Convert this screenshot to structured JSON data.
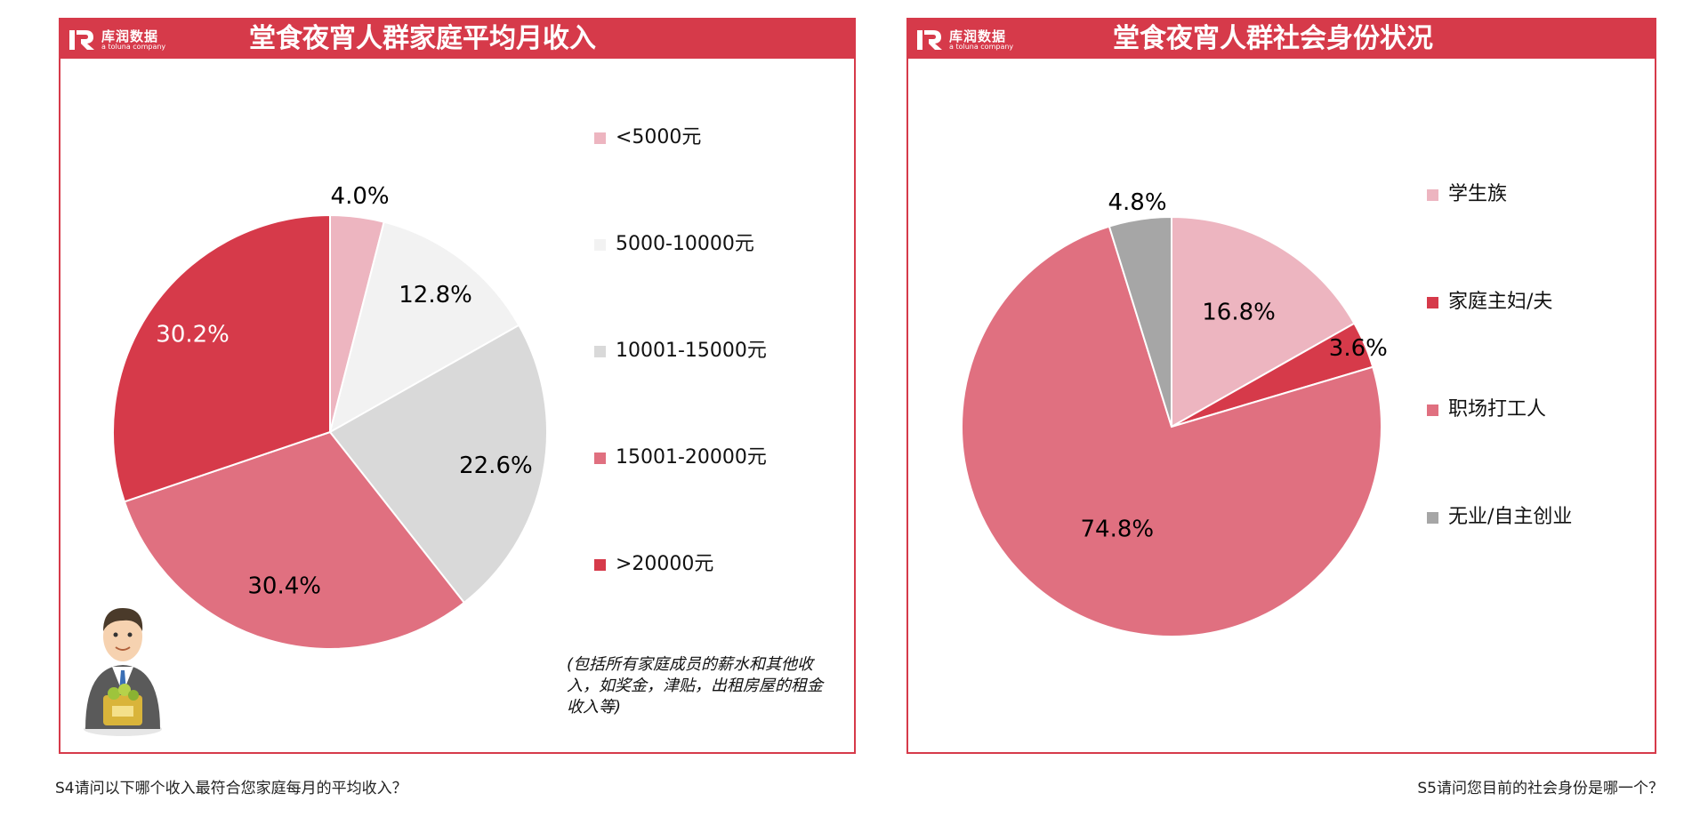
{
  "brand": {
    "name": "库润数据",
    "sub": "a toluna company",
    "color": "#d63a4a"
  },
  "chart_data": [
    {
      "type": "pie",
      "title": "堂食夜宵人群家庭平均月收入",
      "categories": [
        "<5000元",
        "5000-10000元",
        "10001-15000元",
        "15001-20000元",
        ">20000元"
      ],
      "values": [
        4.0,
        12.8,
        22.6,
        30.4,
        30.2
      ],
      "labels": [
        "4.0%",
        "12.8%",
        "22.6%",
        "30.4%",
        "30.2%"
      ],
      "colors": [
        "#edb5c0",
        "#f2f2f2",
        "#d9d9d9",
        "#e07080",
        "#d63a4a"
      ],
      "label_colors": [
        "#000000",
        "#000000",
        "#000000",
        "#000000",
        "#ffffff"
      ],
      "legend": "right",
      "note": "(包括所有家庭成员的薪水和其他收入，如奖金，津贴，出租房屋的租金收入等)",
      "question": "S4请问以下哪个收入最符合您家庭每月的平均收入？"
    },
    {
      "type": "pie",
      "title": "堂食夜宵人群社会身份状况",
      "categories": [
        "学生族",
        "家庭主妇/夫",
        "职场打工人",
        "无业/自主创业"
      ],
      "values": [
        16.8,
        3.6,
        74.8,
        4.8
      ],
      "labels": [
        "16.8%",
        "3.6%",
        "74.8%",
        "4.8%"
      ],
      "colors": [
        "#edb5c0",
        "#d63a4a",
        "#e07080",
        "#a6a6a6"
      ],
      "label_colors": [
        "#000000",
        "#000000",
        "#000000",
        "#000000"
      ],
      "legend": "right",
      "question": "S5请问您目前的社会身份是哪一个？"
    }
  ]
}
